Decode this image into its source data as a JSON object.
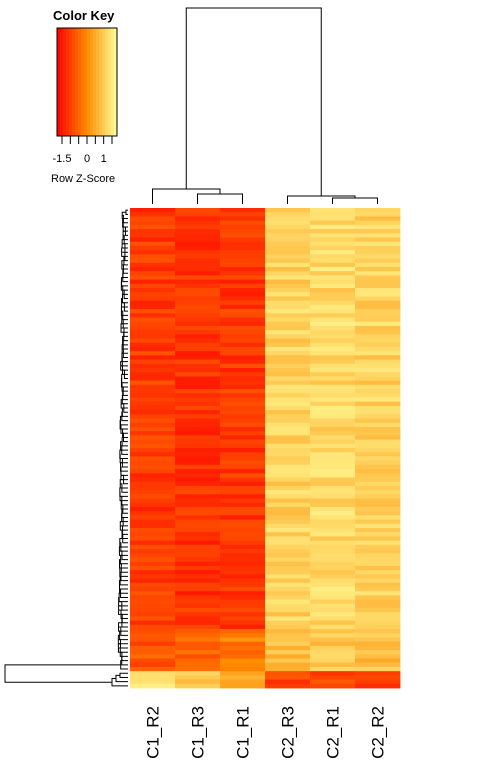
{
  "chart_data": {
    "type": "heatmap",
    "columns": [
      "C1_R2",
      "C1_R3",
      "C1_R1",
      "C2_R3",
      "C2_R1",
      "C2_R2"
    ],
    "zlim": [
      -1.8,
      1.8
    ],
    "blocks": [
      {
        "rows": 100,
        "means": [
          -1.05,
          -1.15,
          -1.1,
          1.1,
          1.2,
          1.1
        ]
      },
      {
        "rows": 10,
        "means": [
          -0.7,
          -0.5,
          -0.2,
          0.8,
          0.9,
          0.8
        ]
      },
      {
        "rows": 4,
        "means": [
          1.2,
          1.0,
          0.6,
          -1.0,
          -0.9,
          -0.9
        ]
      }
    ],
    "legend": {
      "title": "Color Key",
      "xlabel": "Row Z-Score",
      "ticks": [
        "-1.5",
        "0",
        "1"
      ],
      "tick_values": [
        -1.5,
        0,
        1
      ]
    },
    "colors": {
      "low": "#ff0000",
      "mid": "#ff8c00",
      "high": "#ffff9a"
    }
  }
}
